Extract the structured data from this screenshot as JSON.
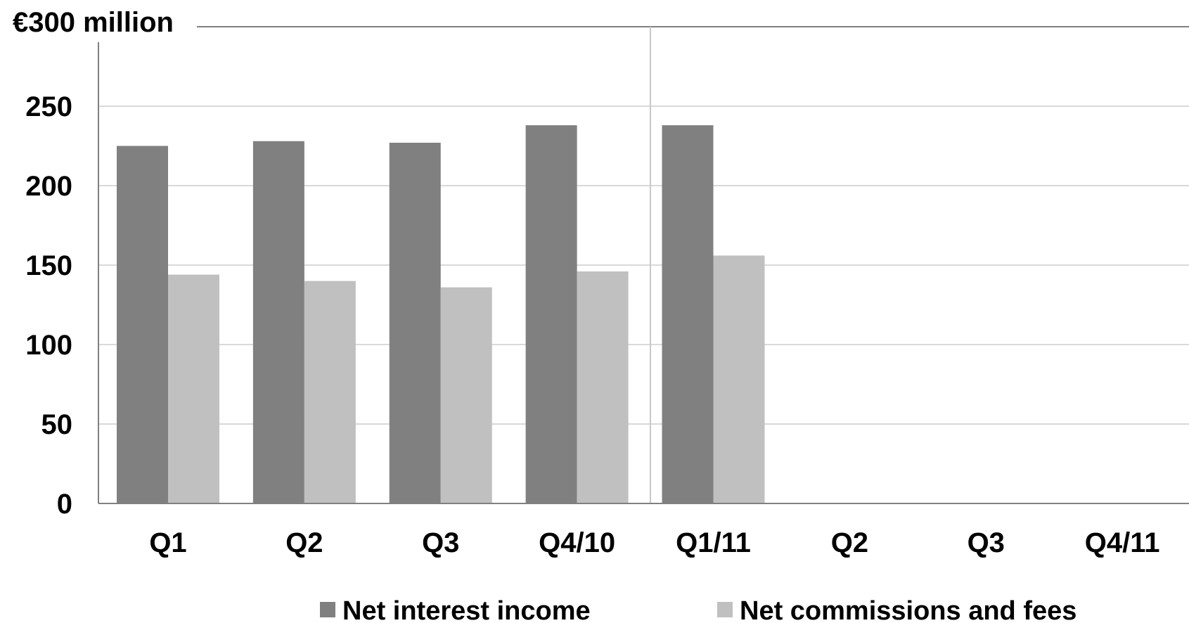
{
  "chart_data": {
    "type": "bar",
    "unit_label": "€300 million",
    "categories": [
      "Q1",
      "Q2",
      "Q3",
      "Q4/10",
      "Q1/11",
      "Q2",
      "Q3",
      "Q4/11"
    ],
    "y_ticks": [
      "0",
      "50",
      "100",
      "150",
      "200",
      "250"
    ],
    "ylim": [
      0,
      300
    ],
    "grid": true,
    "legend_position": "bottom",
    "series": [
      {
        "name": "Net interest income",
        "color": "#808080",
        "values": [
          225,
          228,
          227,
          238,
          238,
          null,
          null,
          null
        ]
      },
      {
        "name": "Net commissions and fees",
        "color": "#c0c0c0",
        "values": [
          144,
          140,
          136,
          146,
          156,
          null,
          null,
          null
        ]
      }
    ]
  }
}
